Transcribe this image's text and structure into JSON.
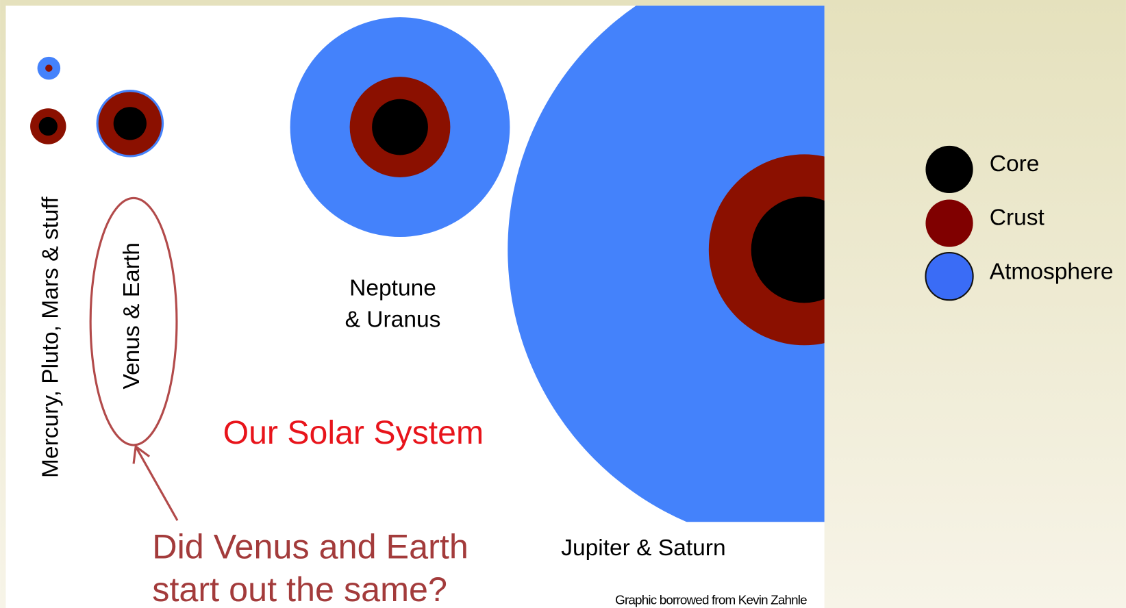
{
  "title": "Our Solar System",
  "planet_labels": {
    "small": "Mercury, Pluto, Mars & stuff",
    "terrestrial": "Venus & Earth",
    "ice_giants": [
      "Neptune",
      "& Uranus"
    ],
    "gas_giants": "Jupiter & Saturn"
  },
  "question": [
    "Did Venus and Earth",
    "start out the same?"
  ],
  "credit": "Graphic borrowed from Kevin Zahnle",
  "legend": [
    "Core",
    "Crust",
    "Atmosphere"
  ]
}
